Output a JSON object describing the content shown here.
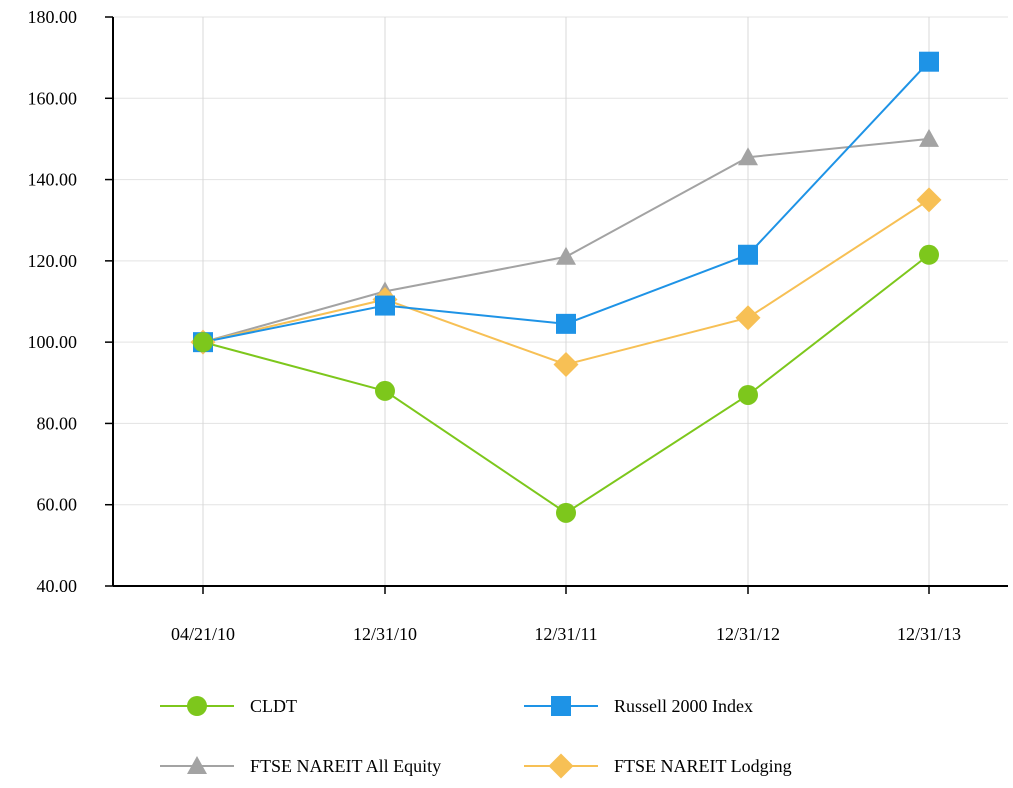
{
  "chart_data": {
    "type": "line",
    "categories": [
      "04/21/10",
      "12/31/10",
      "12/31/11",
      "12/31/12",
      "12/31/13"
    ],
    "ylim": [
      40,
      180
    ],
    "yticks": [
      "40.00",
      "60.00",
      "80.00",
      "100.00",
      "120.00",
      "140.00",
      "160.00",
      "180.00"
    ],
    "grid": true,
    "legend_position": "bottom",
    "series": [
      {
        "name": "CLDT",
        "values": [
          100,
          88,
          58,
          87,
          121.5
        ],
        "color": "#7dc71c",
        "marker": "circle"
      },
      {
        "name": "Russell 2000 Index",
        "values": [
          100,
          109,
          104.5,
          121.5,
          169
        ],
        "color": "#1e93e6",
        "marker": "square"
      },
      {
        "name": "FTSE NAREIT All Equity",
        "values": [
          100,
          112.5,
          121,
          145.5,
          150
        ],
        "color": "#a3a3a3",
        "marker": "triangle"
      },
      {
        "name": "FTSE NAREIT Lodging",
        "values": [
          100,
          110.5,
          94.5,
          106,
          135
        ],
        "color": "#f7c055",
        "marker": "diamond"
      }
    ]
  }
}
